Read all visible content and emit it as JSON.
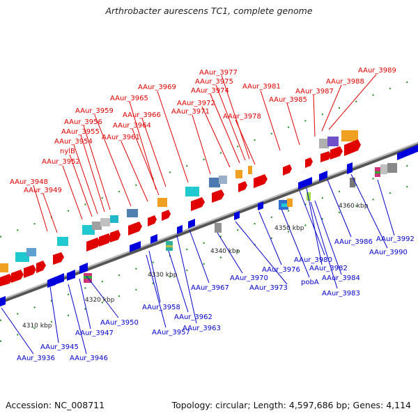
{
  "title": "Arthrobacter aurescens TC1, complete genome",
  "accession": "Accession: NC_008711",
  "summary": "Topology: circular; Length: 4,597,686 bp; Genes: 4,114",
  "ticks": [
    "4310 kbp",
    "4320 kbp",
    "4330 kbp",
    "4340 kbp",
    "4350 kbp",
    "4360 kbp"
  ],
  "labels_top": [
    "AAur_3948",
    "AAur_3949",
    "AAur_3952",
    "nylB",
    "AAur_3954",
    "AAur_3955",
    "AAur_3956",
    "AAur_3959",
    "AAur_3961",
    "AAur_3964",
    "AAur_3965",
    "AAur_3966",
    "AAur_3969",
    "AAur_3971",
    "AAur_3972",
    "AAur_3974",
    "AAur_3975",
    "AAur_3977",
    "AAur_3978",
    "AAur_3981",
    "AAur_3985",
    "AAur_3987",
    "AAur_3988",
    "AAur_3989"
  ],
  "labels_bottom": [
    "AAur_3936",
    "AAur_3945",
    "AAur_3946",
    "AAur_3947",
    "AAur_3950",
    "AAur_3957",
    "AAur_3958",
    "AAur_3962",
    "AAur_3963",
    "AAur_3967",
    "AAur_3970",
    "AAur_3973",
    "AAur_3976",
    "pobA",
    "AAur_3980",
    "AAur_3982",
    "AAur_3983",
    "AAur_3984",
    "AAur_3986",
    "AAur_3990",
    "AAur_3992"
  ]
}
